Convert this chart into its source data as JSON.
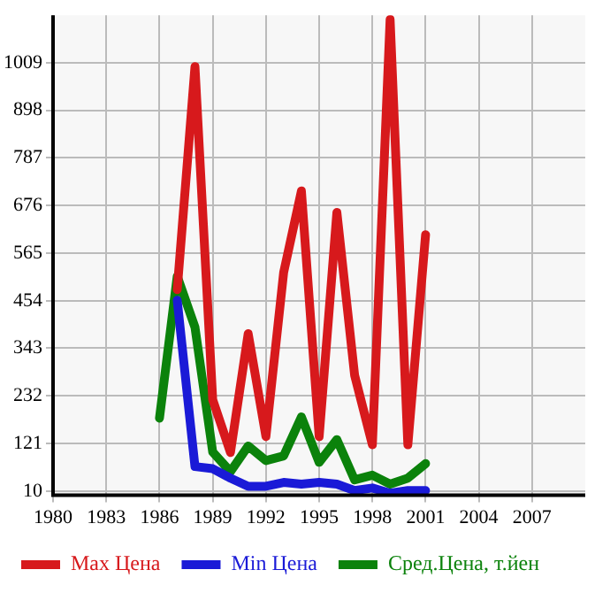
{
  "chart_data": {
    "type": "line",
    "x": [
      1986,
      1987,
      1988,
      1989,
      1990,
      1991,
      1992,
      1993,
      1994,
      1995,
      1996,
      1997,
      1998,
      1999,
      2000,
      2001
    ],
    "series": [
      {
        "name": "Max Цена",
        "color": "#d7191c",
        "values": [
          null,
          480,
          1000,
          223,
          100,
          377,
          137,
          520,
          710,
          137,
          660,
          280,
          118,
          1110,
          118,
          608
        ]
      },
      {
        "name": "Min Цена",
        "color": "#1a1ad7",
        "values": [
          null,
          455,
          67,
          62,
          40,
          21,
          21,
          30,
          26,
          30,
          26,
          11,
          17,
          5,
          11,
          11
        ]
      },
      {
        "name": "Сред.Цена, т.йен",
        "color": "#0b820b",
        "values": [
          180,
          511,
          392,
          101,
          55,
          115,
          81,
          92,
          183,
          77,
          130,
          36,
          47,
          26,
          40,
          74
        ]
      }
    ],
    "xlim": [
      1980,
      2010
    ],
    "xticks": [
      1980,
      1983,
      1986,
      1989,
      1992,
      1995,
      1998,
      2001,
      2004,
      2007
    ],
    "ylim": [
      0,
      1120
    ],
    "yticks": [
      10,
      121,
      232,
      343,
      454,
      565,
      676,
      787,
      898,
      1009
    ],
    "grid": true,
    "legend": "bottom",
    "marker": "none",
    "line_style": "solid"
  }
}
